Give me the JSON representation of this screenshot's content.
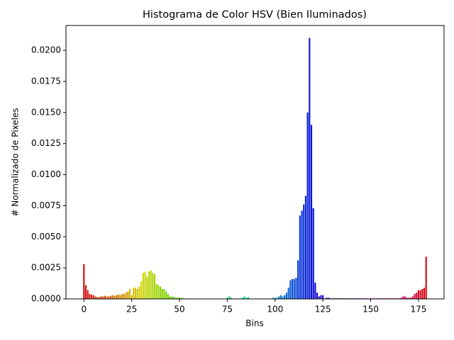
{
  "chart_data": {
    "type": "bar",
    "title": "Histograma de Color HSV (Bien Iluminados)",
    "xlabel": "Bins",
    "ylabel": "# Normalizado de Pixeles",
    "colormap": "hsv",
    "x": [
      0,
      1,
      2,
      3,
      4,
      5,
      6,
      7,
      8,
      9,
      10,
      11,
      12,
      13,
      14,
      15,
      16,
      17,
      18,
      19,
      20,
      21,
      22,
      23,
      24,
      25,
      26,
      27,
      28,
      29,
      30,
      31,
      32,
      33,
      34,
      35,
      36,
      37,
      38,
      39,
      40,
      41,
      42,
      43,
      44,
      45,
      46,
      47,
      48,
      49,
      50,
      51,
      52,
      53,
      54,
      55,
      56,
      57,
      58,
      59,
      60,
      61,
      62,
      63,
      64,
      65,
      66,
      67,
      68,
      69,
      70,
      71,
      72,
      73,
      74,
      75,
      76,
      77,
      78,
      79,
      80,
      81,
      82,
      83,
      84,
      85,
      86,
      87,
      88,
      89,
      90,
      91,
      92,
      93,
      94,
      95,
      96,
      97,
      98,
      99,
      100,
      101,
      102,
      103,
      104,
      105,
      106,
      107,
      108,
      109,
      110,
      111,
      112,
      113,
      114,
      115,
      116,
      117,
      118,
      119,
      120,
      121,
      122,
      123,
      124,
      125,
      126,
      127,
      128,
      129,
      130,
      131,
      132,
      133,
      134,
      135,
      136,
      137,
      138,
      139,
      140,
      141,
      142,
      143,
      144,
      145,
      146,
      147,
      148,
      149,
      150,
      151,
      152,
      153,
      154,
      155,
      156,
      157,
      158,
      159,
      160,
      161,
      162,
      163,
      164,
      165,
      166,
      167,
      168,
      169,
      170,
      171,
      172,
      173,
      174,
      175,
      176,
      177,
      178,
      179
    ],
    "values": [
      0.0028,
      0.0011,
      0.0007,
      0.0004,
      0.00035,
      0.0003,
      0.0002,
      0.00015,
      0.00015,
      0.0002,
      0.0002,
      0.00025,
      0.0002,
      0.0002,
      0.00025,
      0.0003,
      0.00025,
      0.0003,
      0.00035,
      0.0003,
      0.0004,
      0.0004,
      0.0005,
      0.0006,
      0.0008,
      0.0003,
      0.0009,
      0.0009,
      0.0008,
      0.001,
      0.0014,
      0.0021,
      0.0022,
      0.0018,
      0.0022,
      0.0023,
      0.0021,
      0.002,
      0.0012,
      0.0011,
      0.001,
      0.0008,
      0.0008,
      0.0006,
      0.0004,
      0.0002,
      0.0002,
      0.00015,
      0.0001,
      0.0001,
      0.0001,
      8e-05,
      5e-05,
      4e-05,
      2e-05,
      2e-05,
      2e-05,
      2e-05,
      2e-05,
      2e-05,
      2e-05,
      2e-05,
      2e-05,
      2e-05,
      2e-05,
      2e-05,
      2e-05,
      2e-05,
      2e-05,
      2e-05,
      2e-05,
      2e-05,
      2e-05,
      2e-05,
      2e-05,
      0.0001,
      0.0002,
      0.0001,
      3e-05,
      3e-05,
      3e-05,
      3e-05,
      3e-05,
      0.0001,
      0.0002,
      8e-05,
      0.00015,
      3e-05,
      3e-05,
      3e-05,
      3e-05,
      3e-05,
      3e-05,
      3e-05,
      3e-05,
      3e-05,
      3e-05,
      3e-05,
      3e-05,
      0.0001,
      8e-05,
      0.0001,
      0.0002,
      0.0003,
      0.0002,
      0.0003,
      0.0005,
      0.0009,
      0.0015,
      0.0016,
      0.0016,
      0.0017,
      0.0031,
      0.0067,
      0.0071,
      0.0076,
      0.0083,
      0.015,
      0.021,
      0.014,
      0.0073,
      0.0013,
      0.0005,
      0.0002,
      0.0003,
      0.0003,
      5e-05,
      0.0001,
      0.0001,
      5e-05,
      5e-05,
      5e-05,
      5e-05,
      5e-05,
      5e-05,
      5e-05,
      5e-05,
      5e-05,
      5e-05,
      5e-05,
      5e-05,
      5e-05,
      5e-05,
      5e-05,
      5e-05,
      5e-05,
      5e-05,
      5e-05,
      5e-05,
      5e-05,
      5e-05,
      5e-05,
      5e-05,
      5e-05,
      5e-05,
      5e-05,
      5e-05,
      5e-05,
      5e-05,
      5e-05,
      5e-05,
      5e-05,
      5e-05,
      5e-05,
      5e-05,
      5e-05,
      0.0001,
      0.0002,
      0.0002,
      0.0001,
      0.0001,
      0.0001,
      0.0002,
      0.0004,
      0.0005,
      0.0007,
      0.0007,
      0.0008,
      0.0009,
      0.0034
    ],
    "xlim": [
      -9.39,
      188.39
    ],
    "xticks": [
      0,
      25,
      50,
      75,
      100,
      125,
      150,
      175
    ],
    "ylim": [
      0,
      0.022
    ],
    "yticks": [
      {
        "value": 0,
        "label": "0.0000"
      },
      {
        "value": 0.0025,
        "label": "0.0025"
      },
      {
        "value": 0.005,
        "label": "0.0050"
      },
      {
        "value": 0.0075,
        "label": "0.0075"
      },
      {
        "value": 0.01,
        "label": "0.0100"
      },
      {
        "value": 0.0125,
        "label": "0.0125"
      },
      {
        "value": 0.015,
        "label": "0.0150"
      },
      {
        "value": 0.0175,
        "label": "0.0175"
      },
      {
        "value": 0.02,
        "label": "0.0200"
      }
    ]
  }
}
